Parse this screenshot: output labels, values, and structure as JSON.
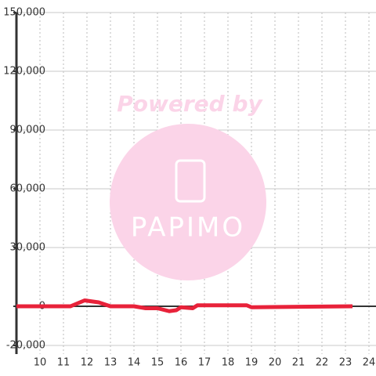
{
  "chart_data": {
    "type": "line",
    "watermark": {
      "line1": "Powered by",
      "line2": "PAPIMO"
    },
    "x": [
      9,
      11.3,
      11.9,
      12.5,
      13,
      14,
      14.5,
      15,
      15.5,
      15.8,
      16,
      16.5,
      16.7,
      18.8,
      19,
      23.3
    ],
    "series": [
      {
        "color": "#e8223a",
        "values": [
          0,
          0,
          3000,
          2000,
          0,
          0,
          -1000,
          -1000,
          -2500,
          -2000,
          -500,
          -1000,
          500,
          500,
          -500,
          0
        ]
      }
    ],
    "xlim": [
      9,
      24.3
    ],
    "xticks": [
      10,
      11,
      12,
      13,
      14,
      15,
      16,
      17,
      18,
      19,
      20,
      21,
      22,
      23,
      24
    ],
    "ylim": [
      -20000,
      150000
    ],
    "yticks": [
      {
        "value": -20000,
        "label": "-20,000"
      },
      0,
      {
        "value": 30000,
        "label": "30,000"
      },
      {
        "value": 60000,
        "label": "60,000"
      },
      {
        "value": 90000,
        "label": "90,000"
      },
      {
        "value": 120000,
        "label": "120,000"
      },
      {
        "value": 150000,
        "label": "150,000"
      }
    ],
    "grid": true
  }
}
